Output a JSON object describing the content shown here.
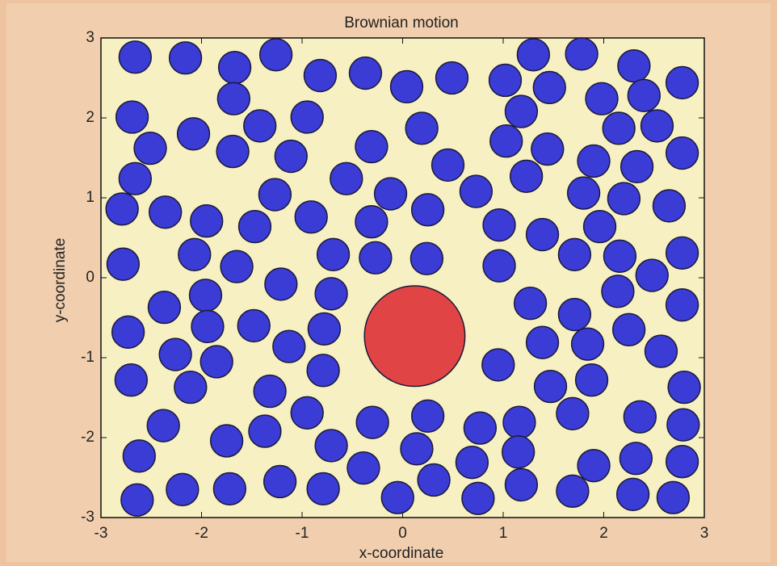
{
  "chart_data": {
    "type": "scatter",
    "title": "Brownian motion",
    "x_label": "x-coordinate",
    "y_label": "y-coordinate",
    "xlim": [
      -3,
      3
    ],
    "ylim": [
      -3,
      3
    ],
    "xticks": [
      -3,
      -2,
      -1,
      0,
      1,
      2,
      3
    ],
    "yticks": [
      -3,
      -2,
      -1,
      0,
      1,
      2,
      3
    ],
    "series": [
      {
        "color": "#3b3bd6",
        "radius": 0.16,
        "x": [
          -2.66,
          -2.16,
          -1.67,
          -1.26,
          -0.82,
          -0.37,
          0.04,
          0.49,
          1.02,
          1.3,
          1.78,
          2.3,
          2.78,
          1.46,
          -1.68,
          -2.69,
          -2.08,
          -1.42,
          -0.95,
          0.19,
          1.18,
          1.98,
          2.4,
          2.15,
          2.53,
          -2.51,
          -1.69,
          -1.11,
          -0.31,
          1.03,
          1.44,
          -2.66,
          -0.56,
          0.45,
          1.23,
          1.9,
          2.33,
          2.78,
          -2.79,
          -2.36,
          -1.95,
          -1.27,
          -0.91,
          -0.12,
          -0.31,
          0.25,
          0.73,
          1.8,
          2.2,
          2.65,
          -1.47,
          0.96,
          1.39,
          1.96,
          -2.78,
          -2.07,
          -1.65,
          -0.69,
          -0.27,
          0.24,
          0.96,
          1.71,
          2.16,
          2.78,
          -1.21,
          -0.71,
          -1.96,
          -2.37,
          2.48,
          2.14,
          1.27,
          1.71,
          2.78,
          -1.94,
          -1.48,
          -0.78,
          -2.73,
          -1.13,
          -2.26,
          -1.85,
          1.39,
          1.84,
          2.25,
          2.57,
          -0.79,
          0.95,
          -2.7,
          -2.11,
          -1.32,
          1.47,
          1.88,
          2.8,
          -0.95,
          -0.3,
          0.25,
          1.69,
          2.36,
          2.79,
          -2.38,
          -1.37,
          -1.75,
          -0.71,
          0.14,
          0.77,
          1.16,
          -2.62,
          0.69,
          1.15,
          2.32,
          2.78,
          -0.39,
          0.31,
          1.9,
          -1.22,
          -2.64,
          -2.19,
          -1.72,
          -0.79,
          -0.05,
          0.75,
          1.18,
          1.69,
          2.29,
          2.69
        ],
        "y": [
          2.76,
          2.75,
          2.63,
          2.79,
          2.53,
          2.56,
          2.39,
          2.5,
          2.47,
          2.79,
          2.8,
          2.65,
          2.44,
          2.38,
          2.24,
          2.01,
          1.8,
          1.9,
          2.01,
          1.87,
          2.08,
          2.24,
          2.28,
          1.87,
          1.9,
          1.62,
          1.58,
          1.52,
          1.64,
          1.71,
          1.61,
          1.24,
          1.24,
          1.41,
          1.27,
          1.46,
          1.39,
          1.56,
          0.86,
          0.82,
          0.71,
          1.04,
          0.76,
          1.05,
          0.7,
          0.85,
          1.08,
          1.06,
          0.99,
          0.9,
          0.64,
          0.66,
          0.54,
          0.64,
          0.17,
          0.29,
          0.14,
          0.29,
          0.25,
          0.24,
          0.15,
          0.29,
          0.27,
          0.31,
          -0.08,
          -0.2,
          -0.22,
          -0.37,
          0.03,
          -0.17,
          -0.32,
          -0.46,
          -0.34,
          -0.61,
          -0.6,
          -0.64,
          -0.68,
          -0.86,
          -0.96,
          -1.05,
          -0.81,
          -0.83,
          -0.65,
          -0.92,
          -1.16,
          -1.09,
          -1.28,
          -1.37,
          -1.42,
          -1.36,
          -1.28,
          -1.37,
          -1.69,
          -1.81,
          -1.73,
          -1.7,
          -1.74,
          -1.84,
          -1.85,
          -1.92,
          -2.04,
          -2.1,
          -2.14,
          -1.88,
          -1.81,
          -2.23,
          -2.31,
          -2.18,
          -2.26,
          -2.3,
          -2.38,
          -2.53,
          -2.35,
          -2.55,
          -2.78,
          -2.65,
          -2.64,
          -2.64,
          -2.75,
          -2.76,
          -2.59,
          -2.67,
          -2.71,
          -2.75
        ]
      },
      {
        "color": "#e04444",
        "radius": 0.5,
        "x": [
          0.12
        ],
        "y": [
          -0.73
        ]
      }
    ]
  }
}
